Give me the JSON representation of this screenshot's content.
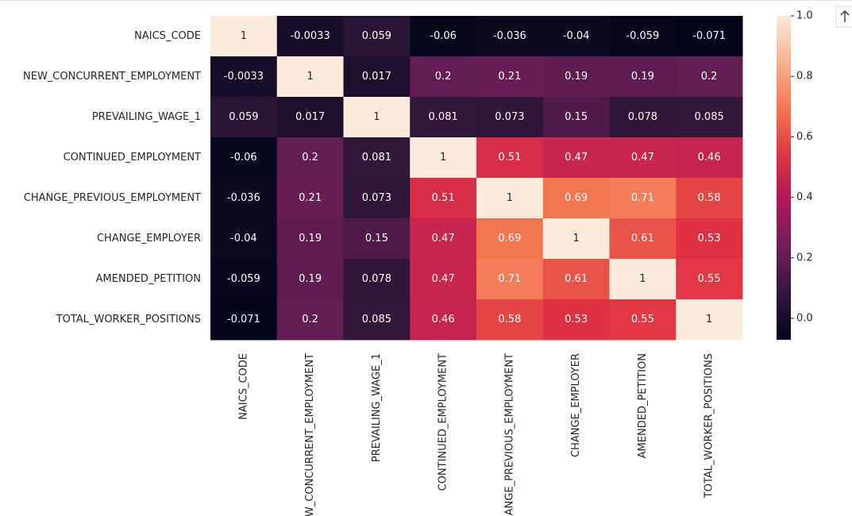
{
  "chart_data": {
    "type": "heatmap",
    "categories": [
      "NAICS_CODE",
      "NEW_CONCURRENT_EMPLOYMENT",
      "PREVAILING_WAGE_1",
      "CONTINUED_EMPLOYMENT",
      "CHANGE_PREVIOUS_EMPLOYMENT",
      "CHANGE_EMPLOYER",
      "AMENDED_PETITION",
      "TOTAL_WORKER_POSITIONS"
    ],
    "values": [
      [
        1,
        -0.0033,
        0.059,
        -0.06,
        -0.036,
        -0.04,
        -0.059,
        -0.071
      ],
      [
        -0.0033,
        1,
        0.017,
        0.2,
        0.21,
        0.19,
        0.19,
        0.2
      ],
      [
        0.059,
        0.017,
        1,
        0.081,
        0.073,
        0.15,
        0.078,
        0.085
      ],
      [
        -0.06,
        0.2,
        0.081,
        1,
        0.51,
        0.47,
        0.47,
        0.46
      ],
      [
        -0.036,
        0.21,
        0.073,
        0.51,
        1,
        0.69,
        0.71,
        0.58
      ],
      [
        -0.04,
        0.19,
        0.15,
        0.47,
        0.69,
        1,
        0.61,
        0.53
      ],
      [
        -0.059,
        0.19,
        0.078,
        0.47,
        0.71,
        0.61,
        1,
        0.55
      ],
      [
        -0.071,
        0.2,
        0.085,
        0.46,
        0.58,
        0.53,
        0.55,
        1
      ]
    ],
    "colormap": "rocket",
    "colorbar_lim": [
      -0.071,
      1
    ],
    "colorbar_ticks": [
      {
        "value": 0,
        "label": "0.0"
      },
      0.2,
      0.4,
      0.6,
      0.8,
      {
        "value": 1,
        "label": "1.0"
      }
    ],
    "annotate": true
  }
}
